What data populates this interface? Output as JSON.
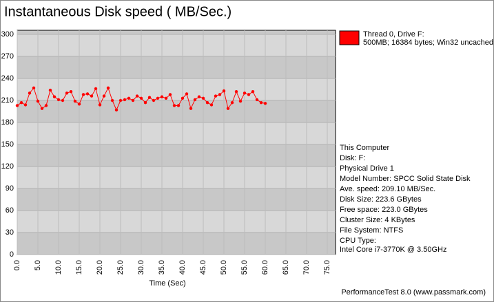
{
  "chart_data": {
    "type": "line",
    "title": "Instantaneous Disk speed ( MB/Sec.)",
    "x_label": "Time (Sec)",
    "xlim": [
      0,
      75
    ],
    "xticks": [
      {
        "value": 0,
        "label": "0.0"
      },
      {
        "value": 5,
        "label": "5.0"
      },
      {
        "value": 10,
        "label": "10.0"
      },
      {
        "value": 15,
        "label": "15.0"
      },
      {
        "value": 20,
        "label": "20.0"
      },
      {
        "value": 25,
        "label": "25.0"
      },
      {
        "value": 30,
        "label": "30.0"
      },
      {
        "value": 35,
        "label": "35.0"
      },
      {
        "value": 40,
        "label": "40.0"
      },
      {
        "value": 45,
        "label": "45.0"
      },
      {
        "value": 50,
        "label": "50.0"
      },
      {
        "value": 55,
        "label": "55.0"
      },
      {
        "value": 60,
        "label": "60.0"
      },
      {
        "value": 65,
        "label": "65.0"
      },
      {
        "value": 70,
        "label": "70.0"
      },
      {
        "value": 75,
        "label": "75.0"
      }
    ],
    "ylim": [
      0,
      300
    ],
    "yticks": [
      0,
      30,
      60,
      90,
      120,
      150,
      180,
      210,
      240,
      270,
      300
    ],
    "x": [
      0,
      1,
      2,
      3,
      4,
      5,
      6,
      7,
      8,
      9,
      10,
      11,
      12,
      13,
      14,
      15,
      16,
      17,
      18,
      19,
      20,
      21,
      22,
      23,
      24,
      25,
      26,
      27,
      28,
      29,
      30,
      31,
      32,
      33,
      34,
      35,
      36,
      37,
      38,
      39,
      40,
      41,
      42,
      43,
      44,
      45,
      46,
      47,
      48,
      49,
      50,
      51,
      52,
      53,
      54,
      55,
      56,
      57,
      58,
      59,
      60
    ],
    "series": [
      {
        "name": "Thread 0, Drive F:",
        "color": "#ff0000",
        "values": [
          203,
          207,
          204,
          220,
          227,
          209,
          199,
          203,
          224,
          215,
          211,
          210,
          220,
          222,
          209,
          205,
          218,
          219,
          216,
          226,
          204,
          216,
          227,
          210,
          197,
          210,
          211,
          213,
          210,
          216,
          213,
          207,
          214,
          210,
          213,
          215,
          213,
          218,
          203,
          203,
          213,
          219,
          199,
          211,
          215,
          213,
          207,
          204,
          216,
          218,
          223,
          199,
          207,
          222,
          209,
          220,
          218,
          222,
          211,
          207,
          206
        ]
      }
    ],
    "legend_detail": "500MB; 16384 bytes; Win32 uncached",
    "info": [
      "This Computer",
      "Disk: F:",
      "Physical Drive 1",
      "Model Number: SPCC Solid State Disk",
      "Ave. speed: 209.10 MB/Sec.",
      "Disk Size: 223.6 GBytes",
      "Free space: 223.0 GBytes",
      "Cluster Size: 4 KBytes",
      "File System: NTFS",
      "CPU Type:",
      "Intel Core i7-3770K @ 3.50GHz"
    ],
    "footer": "PerformanceTest 8.0 (www.passmark.com)"
  }
}
